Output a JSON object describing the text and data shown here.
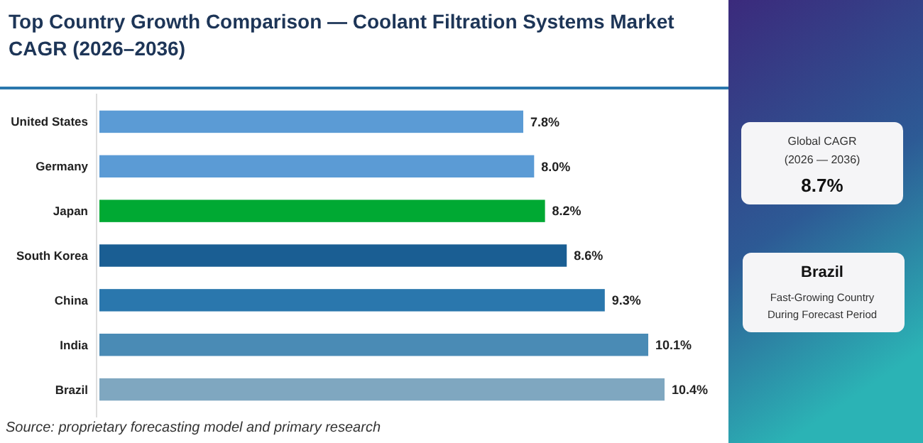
{
  "chart_data": [
    {
      "type": "bar",
      "orientation": "horizontal",
      "title": "Top Country Growth Comparison — Coolant Filtration Systems Market CAGR (2026–2036)",
      "categories": [
        "United States",
        "Germany",
        "Japan",
        "South Korea",
        "China",
        "India",
        "Brazil"
      ],
      "values": [
        7.8,
        8.0,
        8.2,
        8.6,
        9.3,
        10.1,
        10.4
      ],
      "colors": [
        "#5b9bd5",
        "#5b9bd5",
        "#00a933",
        "#1a5e93",
        "#2a77ad",
        "#4a8bb5",
        "#7fa7c0"
      ],
      "value_labels": [
        "7.8%",
        "8.0%",
        "8.2%",
        "8.6%",
        "9.3%",
        "10.1%",
        "10.4%"
      ],
      "annotations": [
        "Source: proprietary forecasting model and primary research"
      ]
    },
    {
      "type": "other",
      "annotations": [
        "Global CAGR",
        "(2026 — 2036)",
        "8.7%",
        "Brazil",
        "Fast-Growing Country",
        "During Forecast Period"
      ]
    }
  ]
}
